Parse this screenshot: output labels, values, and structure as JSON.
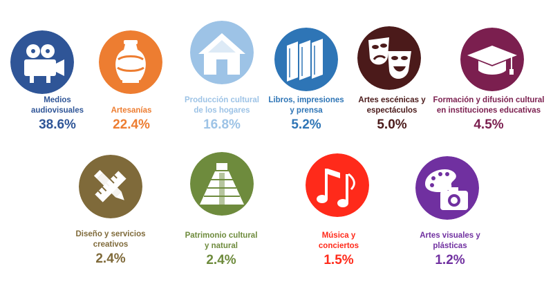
{
  "chart_data": {
    "type": "icon-infographic",
    "unit": "%",
    "items": [
      {
        "label": "Medios\naudiovisuales",
        "value": 38.6,
        "value_text": "38.6%",
        "color": "#2f5597",
        "icon": "film-camera-icon"
      },
      {
        "label": "Artesanías",
        "value": 22.4,
        "value_text": "22.4%",
        "color": "#ed7d31",
        "icon": "vase-icon"
      },
      {
        "label": "Producción cultural\nde los hogares",
        "value": 16.8,
        "value_text": "16.8%",
        "color": "#9dc3e6",
        "icon": "house-icon"
      },
      {
        "label": "Libros, impresiones\ny prensa",
        "value": 5.2,
        "value_text": "5.2%",
        "color": "#2e75b6",
        "icon": "books-icon"
      },
      {
        "label": "Artes escénicas y\nespectáculos",
        "value": 5.0,
        "value_text": "5.0%",
        "color": "#4b1a1a",
        "icon": "theater-masks-icon"
      },
      {
        "label": "Formación  y difusión cultural\nen instituciones educativas",
        "value": 4.5,
        "value_text": "4.5%",
        "color": "#7b1f4f",
        "icon": "graduation-cap-icon"
      },
      {
        "label": "Diseño y servicios\ncreativos",
        "value": 2.4,
        "value_text": "2.4%",
        "color": "#7f6a3a",
        "icon": "pencil-ruler-icon"
      },
      {
        "label": "Patrimonio  cultural\ny natural",
        "value": 2.4,
        "value_text": "2.4%",
        "color": "#6e8b3d",
        "icon": "pyramid-icon"
      },
      {
        "label": "Música y\nconciertos",
        "value": 1.5,
        "value_text": "1.5%",
        "color": "#ff2a1a",
        "icon": "music-notes-icon"
      },
      {
        "label": "Artes visuales y\nplásticas",
        "value": 1.2,
        "value_text": "1.2%",
        "color": "#7030a0",
        "icon": "palette-camera-icon"
      }
    ]
  }
}
